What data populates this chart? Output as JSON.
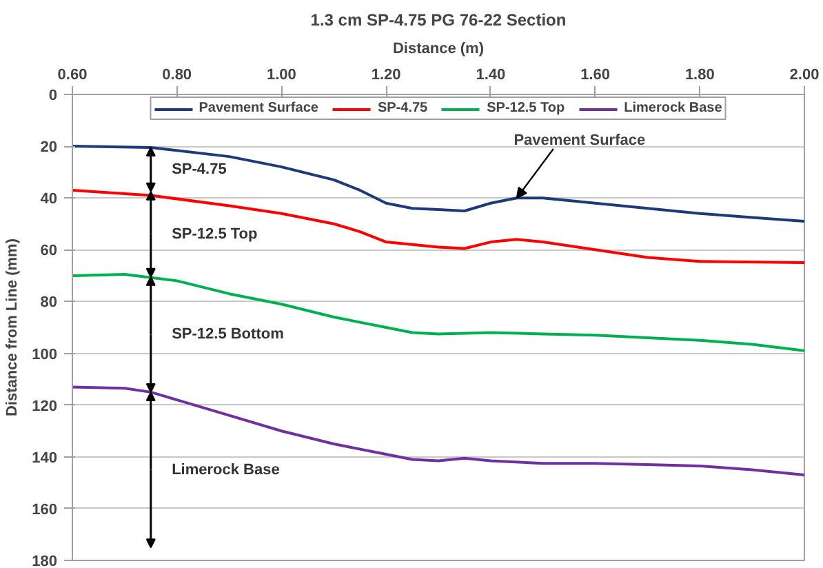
{
  "chart_data": {
    "type": "line",
    "title": "1.3 cm SP-4.75 PG 76-22 Section",
    "xlabel": "Distance (m)",
    "ylabel": "Distance from Line (mm)",
    "xlim": [
      0.6,
      2.0
    ],
    "xticks": [
      {
        "value": 0.6,
        "label": "0.60"
      },
      {
        "value": 0.8,
        "label": "0.80"
      },
      {
        "value": 1.0,
        "label": "1.00"
      },
      {
        "value": 1.2,
        "label": "1.20"
      },
      {
        "value": 1.4,
        "label": "1.40"
      },
      {
        "value": 1.6,
        "label": "1.60"
      },
      {
        "value": 1.8,
        "label": "1.80"
      },
      {
        "value": 2.0,
        "label": "2.00"
      }
    ],
    "ylim": [
      180,
      0
    ],
    "yticks": [
      0,
      20,
      40,
      60,
      80,
      100,
      120,
      140,
      160,
      180
    ],
    "grid": "y",
    "legend": "top",
    "marker": "none",
    "line_style": "solid",
    "series": [
      {
        "name": "Pavement Surface",
        "color": "#1f3a7a",
        "x": [
          0.6,
          0.75,
          0.9,
          1.0,
          1.1,
          1.15,
          1.2,
          1.25,
          1.3,
          1.35,
          1.4,
          1.45,
          1.5,
          1.6,
          1.7,
          1.8,
          1.9,
          2.0
        ],
        "values": [
          20,
          20.5,
          24,
          28,
          33,
          37,
          42,
          44,
          44.5,
          45,
          42,
          40,
          40,
          42,
          44,
          46,
          47.5,
          49
        ]
      },
      {
        "name": "SP-4.75",
        "color": "#ff0000",
        "x": [
          0.6,
          0.75,
          0.9,
          1.0,
          1.1,
          1.15,
          1.2,
          1.3,
          1.35,
          1.4,
          1.45,
          1.5,
          1.6,
          1.7,
          1.8,
          2.0
        ],
        "values": [
          37,
          39,
          43,
          46,
          50,
          53,
          57,
          59,
          59.5,
          57,
          56,
          57,
          60,
          63,
          64.5,
          65
        ]
      },
      {
        "name": "SP-12.5 Top",
        "color": "#00b050",
        "x": [
          0.6,
          0.7,
          0.8,
          0.9,
          1.0,
          1.1,
          1.2,
          1.25,
          1.3,
          1.4,
          1.5,
          1.6,
          1.7,
          1.8,
          1.9,
          2.0
        ],
        "values": [
          70,
          69.5,
          72,
          77,
          81,
          86,
          90,
          92,
          92.5,
          92,
          92.5,
          93,
          94,
          95,
          96.5,
          99
        ]
      },
      {
        "name": "Limerock Base",
        "color": "#7030a0",
        "x": [
          0.6,
          0.7,
          0.75,
          0.8,
          0.9,
          1.0,
          1.1,
          1.2,
          1.25,
          1.3,
          1.35,
          1.4,
          1.5,
          1.6,
          1.7,
          1.8,
          1.9,
          2.0
        ],
        "values": [
          113,
          113.5,
          115,
          118,
          124,
          130,
          135,
          139,
          141,
          141.5,
          140.5,
          141.5,
          142.5,
          142.5,
          143,
          143.5,
          145,
          147
        ]
      }
    ],
    "annotations": [
      {
        "text": "Pavement Surface",
        "x": 1.45,
        "y": 40
      },
      "SP-4.75",
      "SP-12.5 Top",
      "SP-12.5 Bottom",
      "Limerock Base"
    ]
  }
}
